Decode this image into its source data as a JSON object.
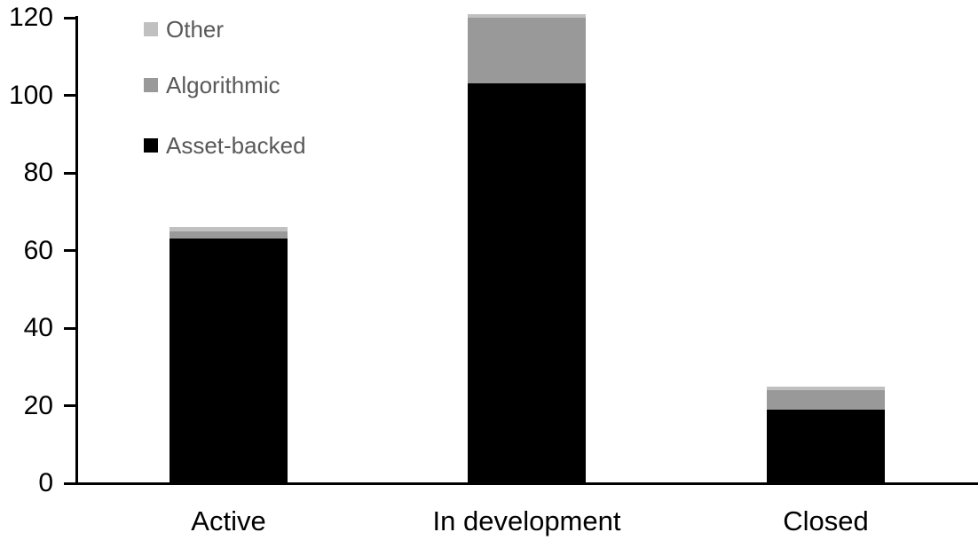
{
  "chart_data": {
    "type": "bar",
    "stacked": true,
    "title": "",
    "xlabel": "",
    "ylabel": "",
    "categories": [
      "Active",
      "In development",
      "Closed"
    ],
    "series": [
      {
        "name": "Asset-backed",
        "color": "#000000",
        "values": [
          63,
          103,
          19
        ]
      },
      {
        "name": "Algorithmic",
        "color": "#999999",
        "values": [
          2,
          17,
          5
        ]
      },
      {
        "name": "Other",
        "color": "#c0c0c0",
        "values": [
          1,
          1,
          1
        ]
      }
    ],
    "totals": [
      66,
      121,
      25
    ],
    "ylim": [
      0,
      120
    ],
    "yticks": [
      0,
      20,
      40,
      60,
      80,
      100,
      120
    ],
    "grid": false,
    "legend_position": "top-left",
    "legend_order": [
      "Other",
      "Algorithmic",
      "Asset-backed"
    ]
  },
  "colors": {
    "axis": "#000000",
    "tick_label_text": "#000000",
    "category_label_text": "#000000",
    "legend_text": "#595959",
    "background": "#ffffff"
  }
}
